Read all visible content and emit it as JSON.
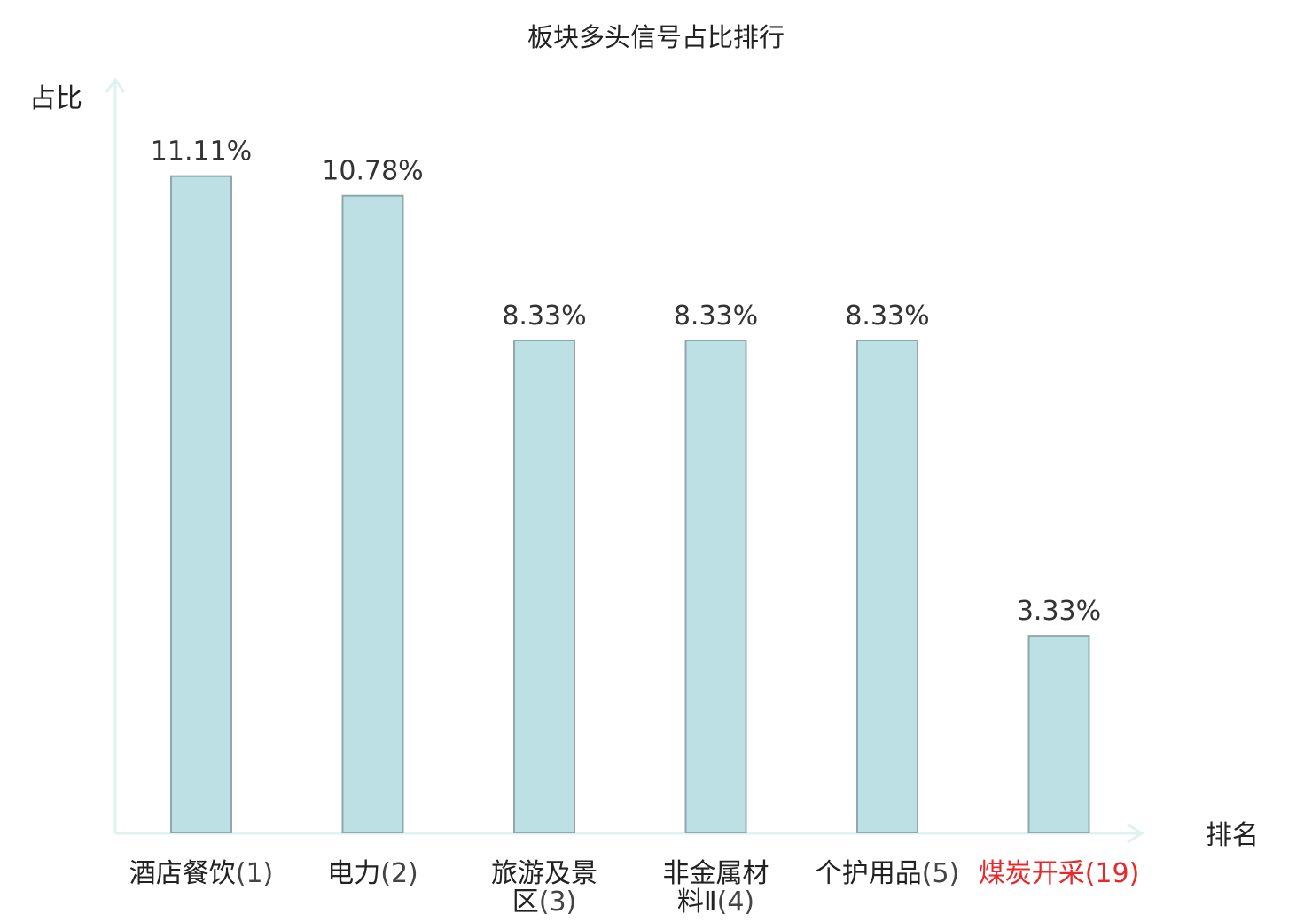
{
  "chart_data": {
    "type": "bar",
    "title": "板块多头信号占比排行",
    "ylabel": "占比",
    "xlabel": "排名",
    "ylim": [
      0,
      12
    ],
    "grid": false,
    "categories": [
      {
        "name_lines": [
          "酒店餐饮"
        ],
        "rank": "(1)",
        "highlight": false
      },
      {
        "name_lines": [
          "电力"
        ],
        "rank": "(2)",
        "highlight": false
      },
      {
        "name_lines": [
          "旅游及景",
          "区"
        ],
        "rank": "(3)",
        "highlight": false
      },
      {
        "name_lines": [
          "非金属材",
          "料Ⅱ"
        ],
        "rank": "(4)",
        "highlight": false
      },
      {
        "name_lines": [
          "个护用品"
        ],
        "rank": "(5)",
        "highlight": false
      },
      {
        "name_lines": [
          "煤炭开采"
        ],
        "rank": "(19)",
        "highlight": true
      }
    ],
    "values": [
      11.11,
      10.78,
      8.33,
      8.33,
      8.33,
      3.33
    ],
    "value_labels": [
      "11.11%",
      "10.78%",
      "8.33%",
      "8.33%",
      "8.33%",
      "3.33%"
    ]
  },
  "colors": {
    "bar_fill": "#bce0e3",
    "bar_stroke": "#8fa8ab",
    "axis": "#dff2ef",
    "text": "#222222",
    "value_text": "#333333",
    "highlight": "#e8282b"
  }
}
